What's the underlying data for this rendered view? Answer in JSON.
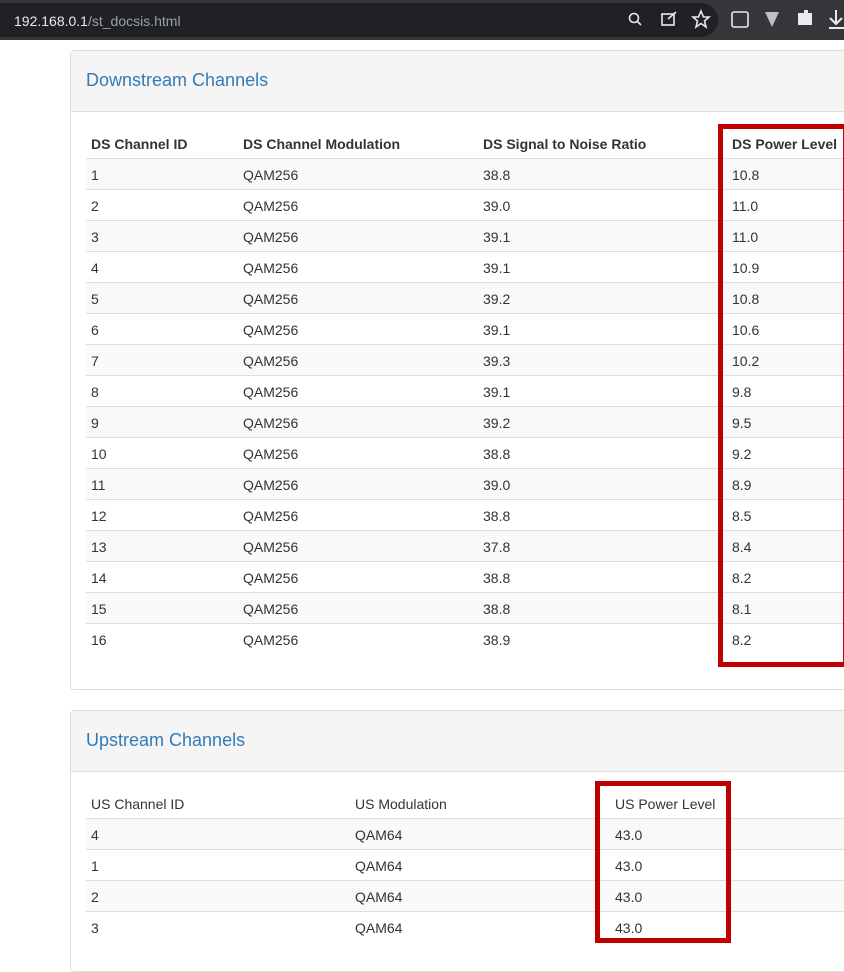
{
  "browser": {
    "url_host": "192.168.0.1",
    "url_path": "/st_docsis.html"
  },
  "downstream": {
    "title": "Downstream Channels",
    "headers": [
      "DS Channel ID",
      "DS Channel Modulation",
      "DS Signal to Noise Ratio",
      "DS Power Level"
    ],
    "rows": [
      [
        "1",
        "QAM256",
        "38.8",
        "10.8"
      ],
      [
        "2",
        "QAM256",
        "39.0",
        "11.0"
      ],
      [
        "3",
        "QAM256",
        "39.1",
        "11.0"
      ],
      [
        "4",
        "QAM256",
        "39.1",
        "10.9"
      ],
      [
        "5",
        "QAM256",
        "39.2",
        "10.8"
      ],
      [
        "6",
        "QAM256",
        "39.1",
        "10.6"
      ],
      [
        "7",
        "QAM256",
        "39.3",
        "10.2"
      ],
      [
        "8",
        "QAM256",
        "39.1",
        "9.8"
      ],
      [
        "9",
        "QAM256",
        "39.2",
        "9.5"
      ],
      [
        "10",
        "QAM256",
        "38.8",
        "9.2"
      ],
      [
        "11",
        "QAM256",
        "39.0",
        "8.9"
      ],
      [
        "12",
        "QAM256",
        "38.8",
        "8.5"
      ],
      [
        "13",
        "QAM256",
        "37.8",
        "8.4"
      ],
      [
        "14",
        "QAM256",
        "38.8",
        "8.2"
      ],
      [
        "15",
        "QAM256",
        "38.8",
        "8.1"
      ],
      [
        "16",
        "QAM256",
        "38.9",
        "8.2"
      ]
    ]
  },
  "upstream": {
    "title": "Upstream Channels",
    "headers": [
      "US Channel ID",
      "US Modulation",
      "US Power Level"
    ],
    "rows": [
      [
        "4",
        "QAM64",
        "43.0"
      ],
      [
        "1",
        "QAM64",
        "43.0"
      ],
      [
        "2",
        "QAM64",
        "43.0"
      ],
      [
        "3",
        "QAM64",
        "43.0"
      ]
    ]
  }
}
